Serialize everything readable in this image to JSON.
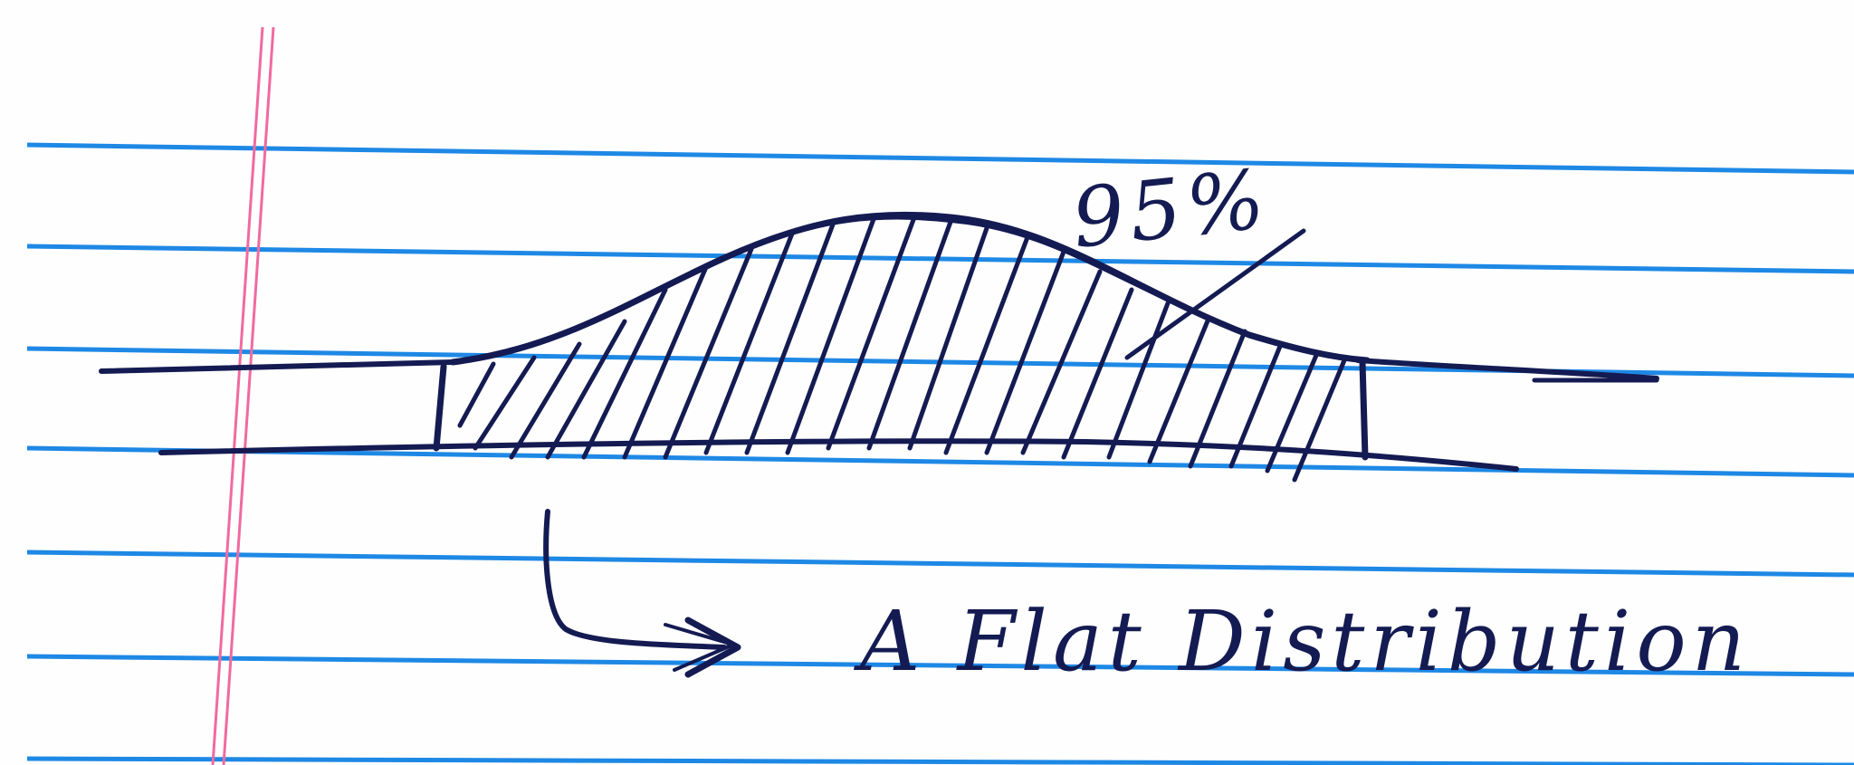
{
  "diagram": {
    "curve_label": "95%",
    "caption": "A Flat Distribution",
    "colors": {
      "ink": "#141b52",
      "rule_line": "#1e88e5",
      "margin_line": "#f06aa0",
      "paper": "#fefefe"
    },
    "icons": [
      "arrow-icon"
    ]
  }
}
